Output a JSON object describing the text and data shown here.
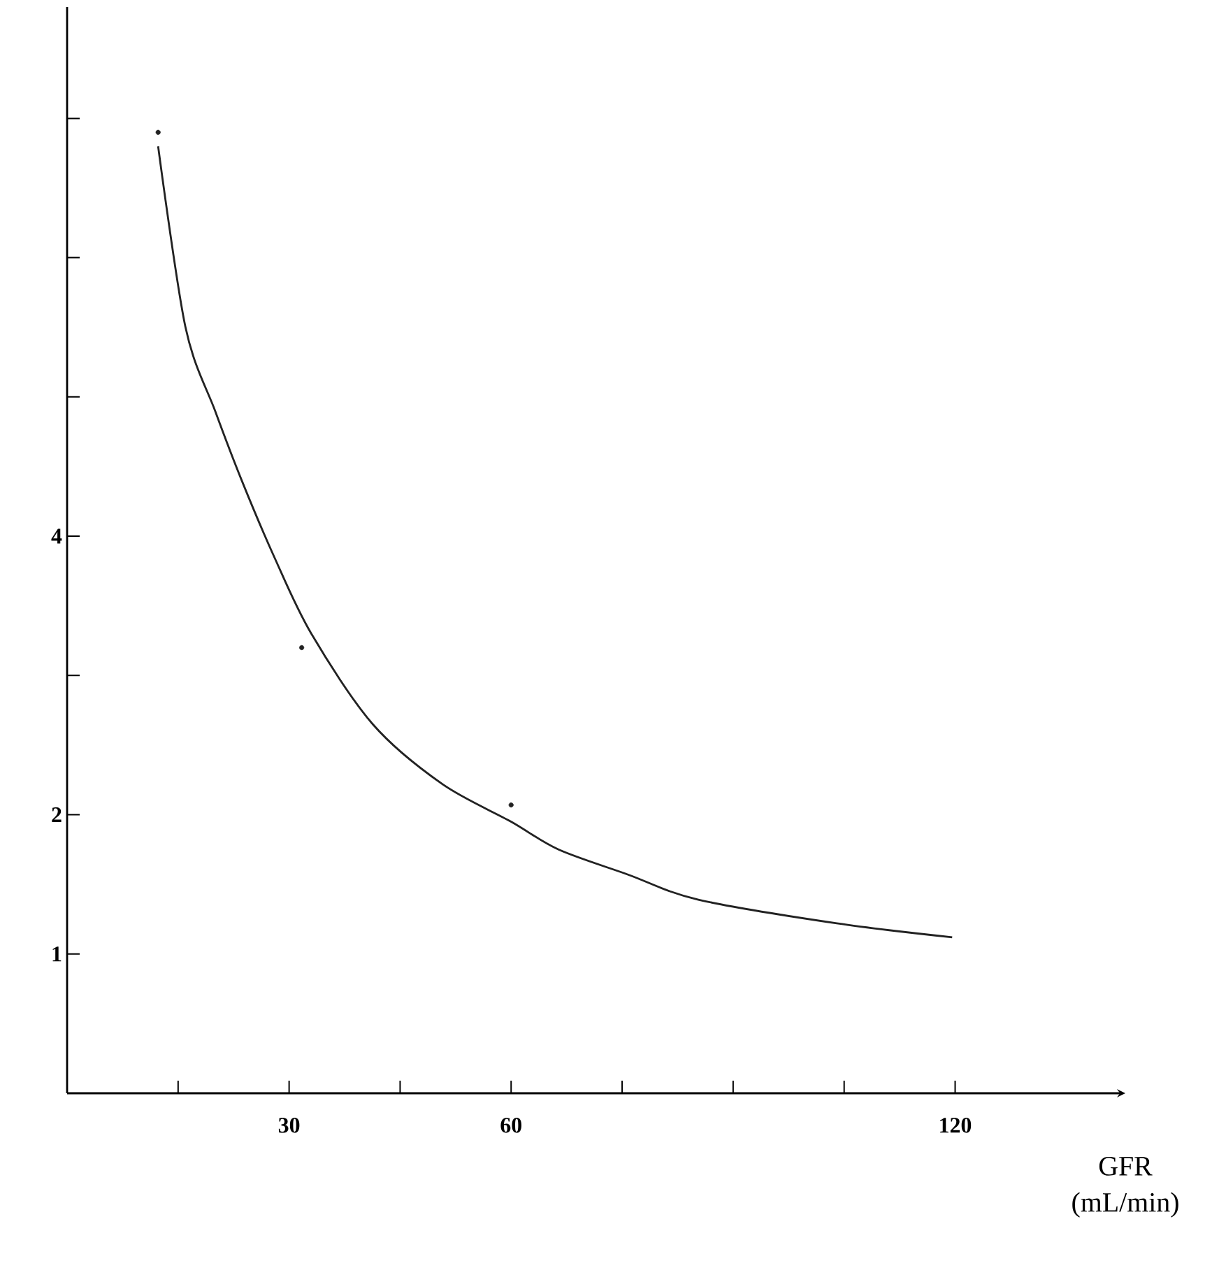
{
  "chart_data": {
    "type": "line",
    "xlabel": "GFR (mL/min)",
    "xlim": [
      0,
      143
    ],
    "ylim": [
      0,
      7.8
    ],
    "xticks": [
      {
        "value": 15,
        "label": null
      },
      30,
      {
        "value": 45,
        "label": null
      },
      60,
      {
        "value": 75,
        "label": null
      },
      {
        "value": 90,
        "label": null
      },
      {
        "value": 105,
        "label": null
      },
      120
    ],
    "yticks": [
      1,
      2,
      {
        "value": 3,
        "label": null
      },
      4,
      {
        "value": 5,
        "label": null
      },
      {
        "value": 6,
        "label": null
      },
      {
        "value": 7,
        "label": null
      }
    ],
    "series": [
      {
        "color": "#222222",
        "marker": "none",
        "x": [
          12.3,
          16,
          20,
          23.6,
          28,
          33,
          41.3,
          50.7,
          60,
          66.4,
          75.8,
          85.3,
          104,
          119.6
        ],
        "values": [
          6.8,
          5.5,
          4.9,
          4.4,
          3.85,
          3.3,
          2.65,
          2.22,
          1.95,
          1.75,
          1.57,
          1.39,
          1.22,
          1.12
        ]
      },
      {
        "type": "scatter",
        "color": "#222222",
        "marker": "circle",
        "x": [
          12.3,
          31.7,
          60
        ],
        "values": [
          6.9,
          3.2,
          2.07
        ]
      }
    ]
  }
}
